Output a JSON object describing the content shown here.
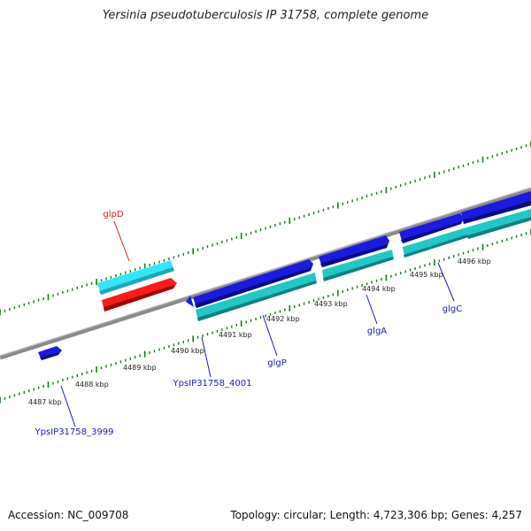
{
  "title": "Yersinia pseudotuberculosis IP 31758, complete genome",
  "footer": {
    "accession": "Accession: NC_009708",
    "summary": "Topology: circular; Length: 4,723,306 bp; Genes: 4,257"
  },
  "colors": {
    "backbone": "#8a8a8a",
    "ticks": "#1a7a1a",
    "forward_cds": "#1a1ae0",
    "forward_cds_shade": "#0a0a8a",
    "reverse_cds": "#ff1a1a",
    "reverse_cds_shade": "#a00000",
    "forward_rna": "#20c8c8",
    "reverse_rna": "#33e6ff",
    "label_forward": "#1a1ab0",
    "label_reverse": "#e01a1a"
  },
  "kbp_labels": [
    "4487 kbp",
    "4488 kbp",
    "4489 kbp",
    "4490 kbp",
    "4491 kbp",
    "4492 kbp",
    "4493 kbp",
    "4494 kbp",
    "4495 kbp",
    "4496 kbp"
  ],
  "genes": [
    {
      "name": "glpD",
      "strand": "reverse"
    },
    {
      "name": "YpsIP31758_3999",
      "strand": "forward"
    },
    {
      "name": "YpsIP31758_4001",
      "strand": "forward"
    },
    {
      "name": "glgP",
      "strand": "forward"
    },
    {
      "name": "glgA",
      "strand": "forward"
    },
    {
      "name": "glgC",
      "strand": "forward"
    }
  ]
}
